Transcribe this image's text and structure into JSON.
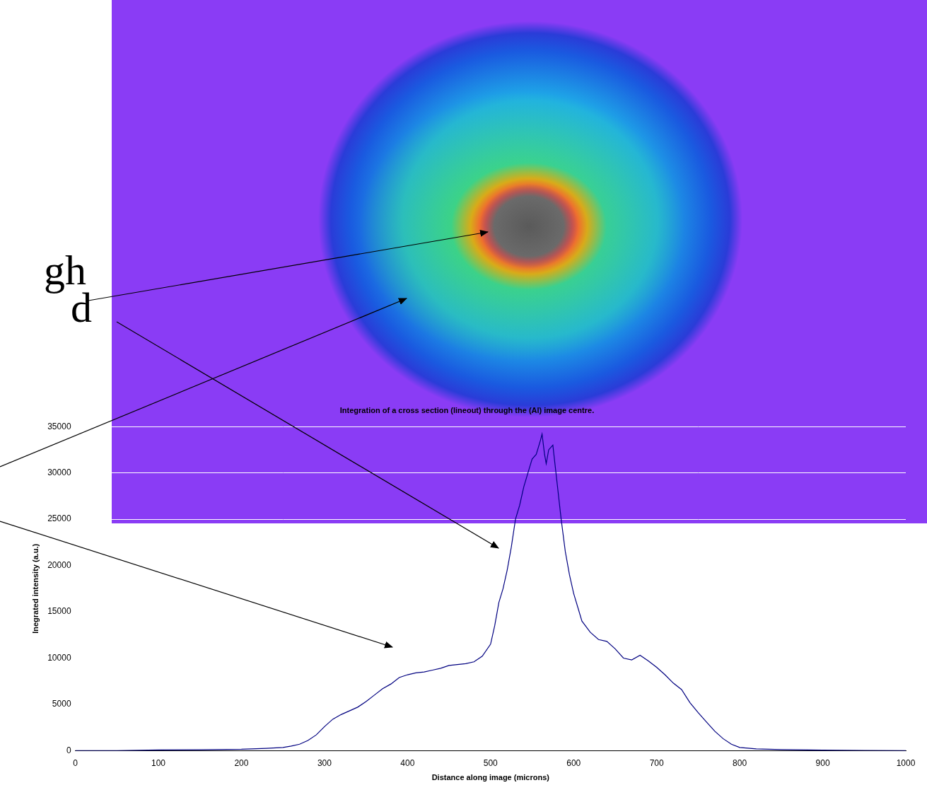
{
  "chart_data": {
    "type": "line",
    "title": "Integration of a cross section (lineout) through the (Al) image centre.",
    "x_label": "Distance along image (microns)",
    "y_label": "Inegrated intensity (a.u.)",
    "annotations": [
      "gh",
      "d"
    ],
    "x": [
      0,
      50,
      100,
      150,
      200,
      230,
      250,
      260,
      270,
      280,
      290,
      300,
      310,
      320,
      330,
      340,
      350,
      360,
      370,
      380,
      390,
      400,
      410,
      420,
      430,
      440,
      450,
      460,
      470,
      480,
      490,
      500,
      505,
      510,
      515,
      520,
      525,
      530,
      535,
      540,
      545,
      550,
      555,
      560,
      562,
      565,
      567,
      570,
      575,
      580,
      585,
      590,
      595,
      600,
      605,
      610,
      620,
      630,
      640,
      650,
      660,
      670,
      680,
      690,
      700,
      710,
      720,
      730,
      740,
      750,
      760,
      770,
      780,
      790,
      800,
      820,
      850,
      900,
      950,
      1000
    ],
    "series": [
      {
        "name": "lineout",
        "color": "#000080",
        "values": [
          0,
          0,
          80,
          100,
          150,
          250,
          350,
          500,
          700,
          1100,
          1700,
          2600,
          3400,
          3900,
          4300,
          4700,
          5300,
          6000,
          6700,
          7200,
          7900,
          8200,
          8400,
          8500,
          8700,
          8900,
          9200,
          9300,
          9400,
          9600,
          10200,
          11500,
          13500,
          16000,
          17500,
          19500,
          22000,
          25000,
          26500,
          28500,
          30000,
          31500,
          32000,
          33500,
          34200,
          32000,
          31000,
          32500,
          33000,
          29000,
          25000,
          21500,
          19000,
          17000,
          15500,
          14000,
          12800,
          12000,
          11800,
          11000,
          10000,
          9800,
          10300,
          9700,
          9000,
          8200,
          7300,
          6600,
          5200,
          4100,
          3100,
          2100,
          1300,
          700,
          350,
          200,
          120,
          60,
          30,
          0
        ]
      }
    ],
    "xlim": [
      0,
      1000
    ],
    "xticks": [
      0,
      100,
      200,
      300,
      400,
      500,
      600,
      700,
      800,
      900,
      1000
    ],
    "ylim": [
      0,
      35000
    ],
    "yticks": [
      0,
      5000,
      10000,
      15000,
      20000,
      25000,
      30000,
      35000
    ],
    "grid": true
  }
}
